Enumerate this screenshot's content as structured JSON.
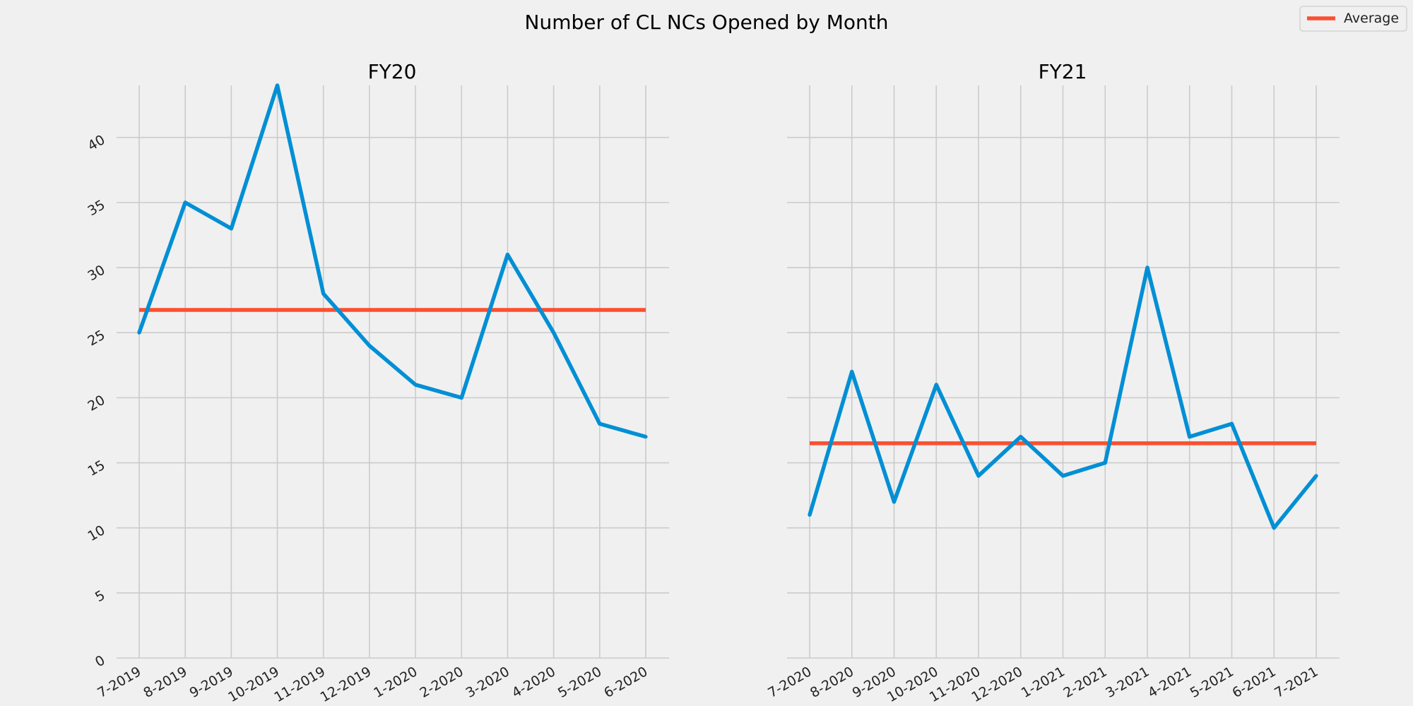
{
  "chart_data": {
    "type": "line",
    "title": "Number of CL NCs Opened by Month",
    "legend": {
      "placement": "top-right",
      "entries": [
        {
          "label": "Average",
          "color": "#fc4f30"
        }
      ]
    },
    "grid": true,
    "sharey": true,
    "ylim": [
      0,
      44
    ],
    "yticks": [
      0,
      5,
      10,
      15,
      20,
      25,
      30,
      35,
      40
    ],
    "ytick_labels": [
      "0",
      "5",
      "10",
      "15",
      "20",
      "25",
      "30",
      "35",
      "40"
    ],
    "colors": {
      "series": "#008fd5",
      "average": "#fc4f30"
    },
    "subplots": [
      {
        "title": "FY20",
        "categories": [
          "7-2019",
          "8-2019",
          "9-2019",
          "10-2019",
          "11-2019",
          "12-2019",
          "1-2020",
          "2-2020",
          "3-2020",
          "4-2020",
          "5-2020",
          "6-2020"
        ],
        "values": [
          25,
          35,
          33,
          44,
          28,
          24,
          21,
          20,
          31,
          25,
          18,
          17
        ],
        "average": 26.75
      },
      {
        "title": "FY21",
        "categories": [
          "7-2020",
          "8-2020",
          "9-2020",
          "10-2020",
          "11-2020",
          "12-2020",
          "1-2021",
          "2-2021",
          "3-2021",
          "4-2021",
          "5-2021",
          "6-2021",
          "7-2021"
        ],
        "values": [
          11,
          22,
          12,
          21,
          14,
          17,
          14,
          15,
          30,
          17,
          18,
          10,
          14
        ],
        "average": 16.5
      }
    ]
  }
}
